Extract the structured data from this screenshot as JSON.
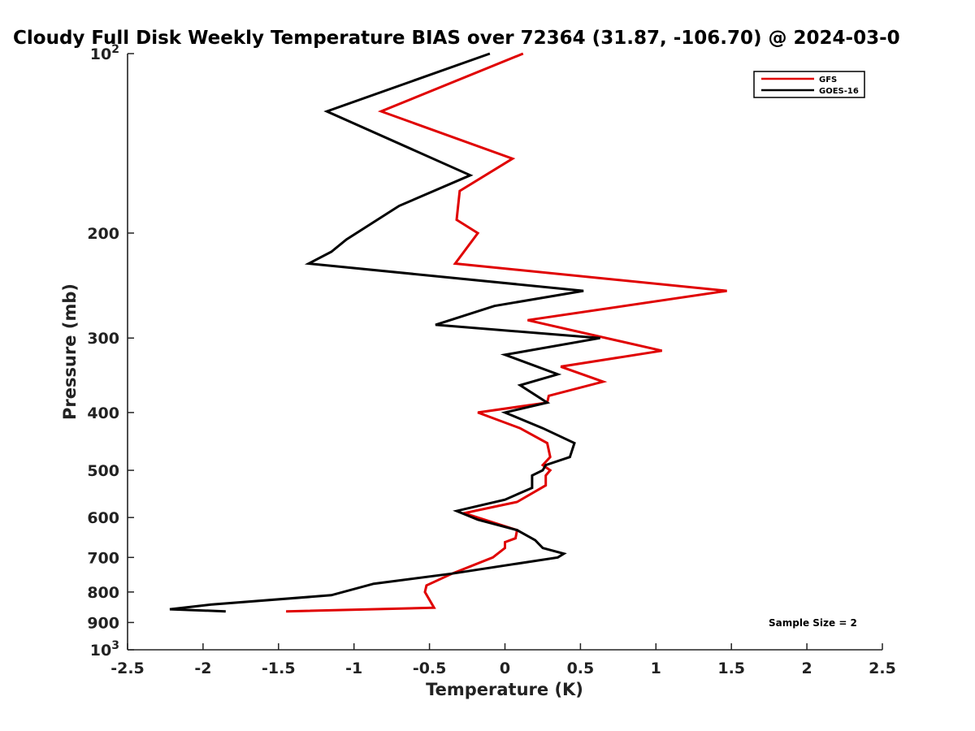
{
  "chart_data": {
    "type": "line",
    "title": "Cloudy Full Disk Weekly Temperature BIAS over 72364 (31.87, -106.70) @ 2024-03-0",
    "xlabel": "Temperature (K)",
    "ylabel": "Pressure (mb)",
    "xlim": [
      -2.5,
      2.5
    ],
    "ylim": [
      1000,
      100
    ],
    "y_scale": "log",
    "grid": false,
    "legend_position": "top-right",
    "x_ticks": [
      "-2.5",
      "-2",
      "-1.5",
      "-1",
      "-0.5",
      "0",
      "0.5",
      "1",
      "1.5",
      "2",
      "2.5"
    ],
    "x_tick_values": [
      -2.5,
      -2,
      -1.5,
      -1,
      -0.5,
      0,
      0.5,
      1,
      1.5,
      2,
      2.5
    ],
    "y_ticks": [
      {
        "value": 100,
        "base": "10",
        "exp": "2"
      },
      {
        "value": 200,
        "label": "200"
      },
      {
        "value": 300,
        "label": "300"
      },
      {
        "value": 400,
        "label": "400"
      },
      {
        "value": 500,
        "label": "500"
      },
      {
        "value": 600,
        "label": "600"
      },
      {
        "value": 700,
        "label": "700"
      },
      {
        "value": 800,
        "label": "800"
      },
      {
        "value": 900,
        "label": "900"
      },
      {
        "value": 1000,
        "base": "10",
        "exp": "3"
      }
    ],
    "annotation": "Sample Size = 2",
    "series": [
      {
        "name": "GFS",
        "color": "#e00000",
        "points": [
          [
            0.12,
            100
          ],
          [
            -0.82,
            125
          ],
          [
            0.05,
            150
          ],
          [
            -0.3,
            170
          ],
          [
            -0.32,
            190
          ],
          [
            -0.18,
            200
          ],
          [
            -0.33,
            225
          ],
          [
            1.47,
            250
          ],
          [
            0.15,
            280
          ],
          [
            1.04,
            315
          ],
          [
            0.37,
            335
          ],
          [
            0.65,
            355
          ],
          [
            0.29,
            375
          ],
          [
            0.28,
            385
          ],
          [
            -0.18,
            400
          ],
          [
            0.1,
            425
          ],
          [
            0.28,
            450
          ],
          [
            0.3,
            475
          ],
          [
            0.25,
            490
          ],
          [
            0.3,
            500
          ],
          [
            0.27,
            510
          ],
          [
            0.27,
            530
          ],
          [
            0.08,
            565
          ],
          [
            -0.27,
            590
          ],
          [
            0.08,
            630
          ],
          [
            0.07,
            650
          ],
          [
            0.0,
            660
          ],
          [
            0.0,
            675
          ],
          [
            -0.08,
            700
          ],
          [
            -0.35,
            745
          ],
          [
            -0.52,
            780
          ],
          [
            -0.53,
            800
          ],
          [
            -0.47,
            850
          ],
          [
            -1.45,
            862
          ]
        ]
      },
      {
        "name": "GOES-16",
        "color": "#000000",
        "points": [
          [
            -0.1,
            100
          ],
          [
            -1.18,
            125
          ],
          [
            -0.23,
            160
          ],
          [
            -0.7,
            180
          ],
          [
            -1.05,
            205
          ],
          [
            -1.15,
            215
          ],
          [
            -1.3,
            225
          ],
          [
            0.52,
            250
          ],
          [
            -0.07,
            265
          ],
          [
            -0.46,
            285
          ],
          [
            0.63,
            300
          ],
          [
            0.0,
            320
          ],
          [
            0.35,
            345
          ],
          [
            0.1,
            360
          ],
          [
            0.28,
            385
          ],
          [
            0.0,
            400
          ],
          [
            0.25,
            425
          ],
          [
            0.46,
            450
          ],
          [
            0.43,
            475
          ],
          [
            0.27,
            490
          ],
          [
            0.25,
            500
          ],
          [
            0.18,
            510
          ],
          [
            0.18,
            535
          ],
          [
            0.0,
            560
          ],
          [
            -0.32,
            585
          ],
          [
            -0.18,
            605
          ],
          [
            0.08,
            630
          ],
          [
            0.2,
            655
          ],
          [
            0.25,
            675
          ],
          [
            0.39,
            690
          ],
          [
            0.35,
            700
          ],
          [
            -0.35,
            745
          ],
          [
            -0.87,
            775
          ],
          [
            -1.15,
            810
          ],
          [
            -1.95,
            840
          ],
          [
            -2.22,
            855
          ],
          [
            -1.85,
            862
          ]
        ]
      }
    ]
  }
}
